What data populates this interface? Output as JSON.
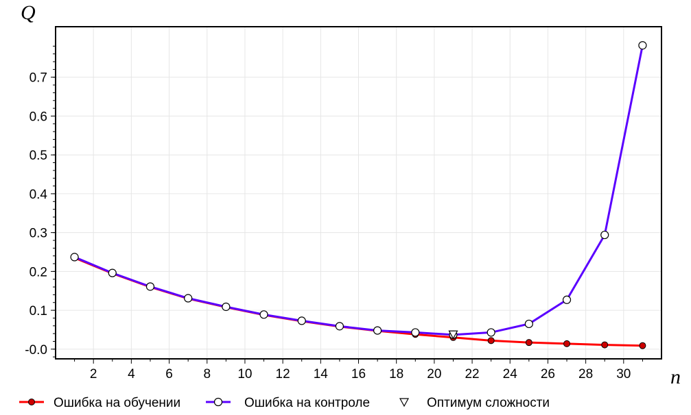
{
  "chart_data": {
    "type": "line",
    "xlabel": "n",
    "ylabel": "Q",
    "xlim": [
      0,
      32
    ],
    "ylim": [
      -0.025,
      0.83
    ],
    "x_ticks": [
      2,
      4,
      6,
      8,
      10,
      12,
      14,
      16,
      18,
      20,
      22,
      24,
      26,
      28,
      30
    ],
    "y_ticks": [
      0.0,
      0.1,
      0.2,
      0.3,
      0.4,
      0.5,
      0.6,
      0.7
    ],
    "y_tick_labels": [
      "-0.0",
      "0.1",
      "0.2",
      "0.3",
      "0.4",
      "0.5",
      "0.6",
      "0.7"
    ],
    "x_tick_labels": [
      "2",
      "4",
      "6",
      "8",
      "10",
      "12",
      "14",
      "16",
      "18",
      "20",
      "22",
      "24",
      "26",
      "28",
      "30"
    ],
    "grid": true,
    "legend_position": "bottom",
    "series": [
      {
        "name": "Ошибка на обучении",
        "color": "#ff0000",
        "marker": "filled-circle",
        "marker_color": "#cc0000",
        "x": [
          1,
          3,
          5,
          7,
          9,
          11,
          13,
          15,
          17,
          19,
          21,
          23,
          25,
          27,
          29,
          31
        ],
        "y": [
          0.235,
          0.195,
          0.16,
          0.13,
          0.108,
          0.088,
          0.072,
          0.058,
          0.047,
          0.038,
          0.03,
          0.022,
          0.017,
          0.014,
          0.011,
          0.009
        ]
      },
      {
        "name": "Ошибка на контроле",
        "color": "#5a00ff",
        "marker": "open-circle",
        "x": [
          1,
          3,
          5,
          7,
          9,
          11,
          13,
          15,
          17,
          19,
          21,
          23,
          25,
          27,
          29,
          31
        ],
        "y": [
          0.237,
          0.196,
          0.161,
          0.131,
          0.109,
          0.089,
          0.073,
          0.059,
          0.048,
          0.043,
          0.037,
          0.043,
          0.065,
          0.127,
          0.294,
          0.782
        ]
      },
      {
        "name": "Оптимум сложности",
        "marker": "open-triangle-down",
        "x": [
          21
        ],
        "y": [
          0.038
        ]
      }
    ]
  },
  "colors": {
    "grid": "#e6e6e6",
    "axis": "#000000",
    "train": "#ff0000",
    "test": "#5a00ff"
  }
}
